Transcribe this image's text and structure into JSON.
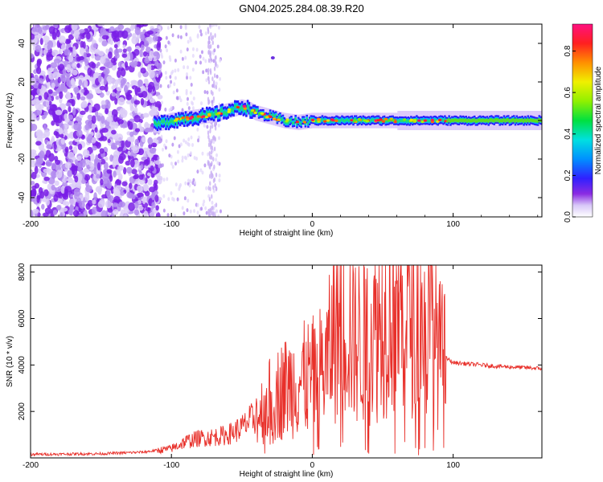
{
  "title": "GN04.2025.284.08.39.R20",
  "chart_data": [
    {
      "type": "heatmap",
      "title": "GN04.2025.284.08.39.R20",
      "xlabel": "Height of straight line (km)",
      "ylabel": "Frequency (Hz)",
      "xlim": [
        -200,
        163
      ],
      "ylim": [
        -50,
        50
      ],
      "xticks": [
        "-200",
        "-100",
        "0",
        "100"
      ],
      "yticks": [
        "40",
        "20",
        "0",
        "-20",
        "-40"
      ],
      "grid": false,
      "colorbar": {
        "label": "Normalized spectral amplitude",
        "range": [
          0,
          0.93
        ],
        "ticks": [
          "0.0",
          "0.2",
          "0.4",
          "0.6",
          "0.8"
        ]
      },
      "ridge": {
        "description_points_x": [
          -110,
          -100,
          -90,
          -80,
          -70,
          -60,
          -50,
          -45,
          -40,
          -30,
          -20,
          -10,
          0,
          20,
          40,
          60,
          80,
          100,
          130,
          163
        ],
        "description_points_y": [
          -2,
          0,
          1,
          2,
          3,
          5,
          7,
          6,
          4,
          2,
          0,
          -1,
          0,
          0,
          0,
          0,
          0,
          0,
          0,
          0
        ]
      }
    },
    {
      "type": "line",
      "xlabel": "Height of straight line (km)",
      "ylabel": "SNR (10 * v/v)",
      "xlim": [
        -200,
        163
      ],
      "ylim": [
        0,
        8300
      ],
      "xticks": [
        "-200",
        "-100",
        "0",
        "100"
      ],
      "yticks": [
        "8000",
        "6000",
        "4000",
        "2000"
      ],
      "grid": false,
      "color": "#e8302a",
      "x": [
        -200,
        -150,
        -120,
        -100,
        -90,
        -80,
        -70,
        -60,
        -50,
        -40,
        -30,
        -20,
        -10,
        0,
        10,
        20,
        25,
        30,
        40,
        50,
        55,
        60,
        70,
        75,
        80,
        85,
        90,
        100,
        130,
        163
      ],
      "y": [
        150,
        180,
        250,
        400,
        700,
        850,
        900,
        1000,
        1300,
        1800,
        2500,
        3000,
        3300,
        3500,
        4000,
        6500,
        5800,
        5000,
        5200,
        6000,
        7200,
        6000,
        6500,
        7800,
        5000,
        6200,
        4500,
        4100,
        3950,
        3850
      ]
    }
  ]
}
